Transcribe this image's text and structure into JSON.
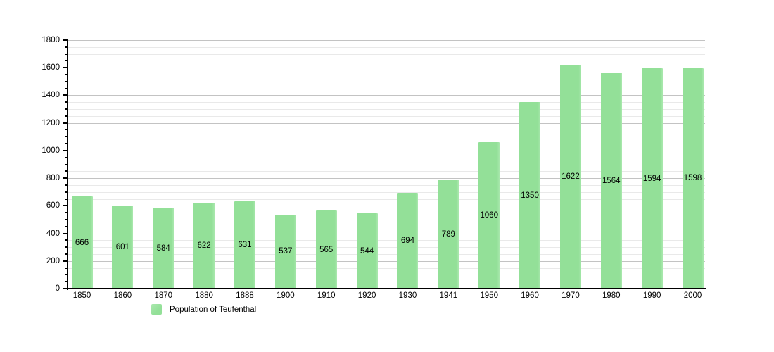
{
  "chart_data": {
    "type": "bar",
    "title": "",
    "xlabel": "",
    "ylabel": "",
    "categories": [
      "1850",
      "1860",
      "1870",
      "1880",
      "1888",
      "1900",
      "1910",
      "1920",
      "1930",
      "1941",
      "1950",
      "1960",
      "1970",
      "1980",
      "1990",
      "2000"
    ],
    "values": [
      666,
      601,
      584,
      622,
      631,
      537,
      565,
      544,
      694,
      789,
      1060,
      1350,
      1622,
      1564,
      1594,
      1598
    ],
    "series_name": "Population of Teufenthal",
    "ylim": [
      0,
      1800
    ],
    "y_major_step": 200,
    "y_minor_step": 50,
    "y_tick_labels": [
      "0",
      "200",
      "400",
      "600",
      "800",
      "1000",
      "1200",
      "1400",
      "1600",
      "1800"
    ],
    "grid": "horizontal",
    "bar_value_labels_shown": true,
    "legend_position": "bottom-left"
  },
  "legend": {
    "label": "Population of Teufenthal"
  },
  "colors": {
    "background": "#ffffff",
    "bar_fill": "#93e098",
    "bar_fill_edge": "#aae8ae",
    "axis": "#000000",
    "major_grid": "#c3c3c3",
    "minor_grid": "#e9e9e9",
    "text": "#000000"
  }
}
